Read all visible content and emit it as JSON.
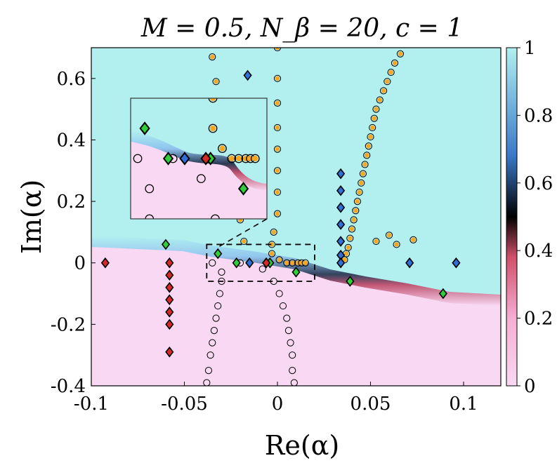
{
  "chart_data": {
    "type": "scatter",
    "title": "M = 0.5, N_β = 20, c = 1",
    "xlabel": "Re(α)",
    "ylabel": "Im(α)",
    "xlim": [
      -0.1,
      0.12
    ],
    "ylim": [
      -0.4,
      0.7
    ],
    "xticks": [
      "-0.1",
      "-0.05",
      "0",
      "0.05",
      "0.1"
    ],
    "xtick_values": [
      -0.1,
      -0.05,
      0,
      0.05,
      0.1
    ],
    "yticks": [
      "-0.4",
      "-0.2",
      "0",
      "0.2",
      "0.4",
      "0.6"
    ],
    "ytick_values": [
      -0.4,
      -0.2,
      0,
      0.2,
      0.4,
      0.6
    ],
    "colorbar": {
      "range": [
        0,
        1
      ],
      "ticks": [
        "0",
        "0.2",
        "0.4",
        "0.6",
        "0.8",
        "1"
      ],
      "tick_values": [
        0,
        0.2,
        0.4,
        0.6,
        0.8,
        1
      ],
      "colors": [
        "#f8d8f2",
        "#f5aed4",
        "#d0506a",
        "#000000",
        "#3a78c8",
        "#b2f0f0"
      ]
    },
    "series": [
      {
        "name": "green-diamonds",
        "marker": "diamond",
        "color": "#2fcf3a",
        "points": [
          [
            -0.06,
            0.06
          ],
          [
            -0.032,
            0.03
          ],
          [
            -0.022,
            0.0
          ],
          [
            -0.004,
            0.0
          ],
          [
            0.01,
            -0.03
          ],
          [
            0.039,
            -0.06
          ],
          [
            0.089,
            -0.1
          ]
        ]
      },
      {
        "name": "red-diamonds",
        "marker": "diamond",
        "color": "#d62a2a",
        "points": [
          [
            -0.0925,
            0.0
          ],
          [
            -0.058,
            0.0
          ],
          [
            -0.058,
            -0.04
          ],
          [
            -0.058,
            -0.08
          ],
          [
            -0.058,
            -0.12
          ],
          [
            -0.058,
            -0.16
          ],
          [
            -0.058,
            -0.2
          ],
          [
            -0.058,
            -0.29
          ],
          [
            -0.006,
            0.0
          ]
        ]
      },
      {
        "name": "blue-diamonds",
        "marker": "diamond",
        "color": "#2f6fd6",
        "points": [
          [
            -0.016,
            0.61
          ],
          [
            -0.015,
            0.0
          ],
          [
            0.034,
            0.29
          ],
          [
            0.034,
            0.235
          ],
          [
            0.034,
            0.18
          ],
          [
            0.034,
            0.125
          ],
          [
            0.034,
            0.07
          ],
          [
            0.034,
            0.025
          ],
          [
            0.034,
            0.0
          ],
          [
            0.071,
            0.0
          ],
          [
            0.096,
            0.0
          ]
        ]
      },
      {
        "name": "open-circles",
        "marker": "circle-open",
        "color": "#000000",
        "points": [
          [
            -0.035,
            0.0
          ],
          [
            -0.03,
            -0.03
          ],
          [
            -0.03,
            -0.06
          ],
          [
            -0.031,
            -0.1
          ],
          [
            -0.032,
            -0.14
          ],
          [
            -0.033,
            -0.18
          ],
          [
            -0.034,
            -0.22
          ],
          [
            -0.035,
            -0.26
          ],
          [
            -0.036,
            -0.3
          ],
          [
            -0.037,
            -0.35
          ],
          [
            -0.038,
            -0.39
          ],
          [
            -0.02,
            0.0
          ],
          [
            -0.008,
            -0.02
          ],
          [
            -0.002,
            -0.06
          ],
          [
            0.001,
            -0.1
          ],
          [
            0.003,
            -0.14
          ],
          [
            0.005,
            -0.18
          ],
          [
            0.006,
            -0.22
          ],
          [
            0.007,
            -0.26
          ],
          [
            0.008,
            -0.3
          ],
          [
            0.008,
            -0.35
          ],
          [
            0.009,
            -0.39
          ]
        ]
      },
      {
        "name": "orange-filled-circles",
        "marker": "circle-filled",
        "color": "#f5a623",
        "points": [
          [
            -0.035,
            0.67
          ],
          [
            -0.033,
            0.59
          ],
          [
            -0.03,
            0.5
          ],
          [
            -0.028,
            0.42
          ],
          [
            -0.026,
            0.35
          ],
          [
            -0.024,
            0.28
          ],
          [
            -0.022,
            0.21
          ],
          [
            -0.02,
            0.14
          ],
          [
            -0.018,
            0.07
          ],
          [
            0.0,
            0.7
          ],
          [
            0.0,
            0.6
          ],
          [
            0.0,
            0.52
          ],
          [
            0.0,
            0.44
          ],
          [
            0.0,
            0.37
          ],
          [
            0.0,
            0.3
          ],
          [
            0.0,
            0.23
          ],
          [
            0.0,
            0.16
          ],
          [
            -0.002,
            0.1
          ],
          [
            -0.003,
            0.06
          ],
          [
            -0.003,
            0.03
          ],
          [
            0.001,
            0.01
          ],
          [
            0.005,
            0.0
          ],
          [
            0.008,
            0.0
          ],
          [
            0.011,
            0.0
          ],
          [
            0.013,
            0.0
          ],
          [
            0.015,
            0.0
          ],
          [
            0.066,
            0.68
          ],
          [
            0.063,
            0.65
          ],
          [
            0.061,
            0.62
          ],
          [
            0.059,
            0.59
          ],
          [
            0.057,
            0.56
          ],
          [
            0.055,
            0.53
          ],
          [
            0.053,
            0.5
          ],
          [
            0.052,
            0.47
          ],
          [
            0.051,
            0.44
          ],
          [
            0.05,
            0.41
          ],
          [
            0.049,
            0.38
          ],
          [
            0.048,
            0.35
          ],
          [
            0.047,
            0.32
          ],
          [
            0.046,
            0.29
          ],
          [
            0.045,
            0.26
          ],
          [
            0.044,
            0.23
          ],
          [
            0.043,
            0.2
          ],
          [
            0.042,
            0.17
          ],
          [
            0.041,
            0.14
          ],
          [
            0.04,
            0.11
          ],
          [
            0.039,
            0.08
          ],
          [
            0.038,
            0.05
          ],
          [
            0.037,
            0.03
          ],
          [
            0.036,
            0.01
          ],
          [
            0.053,
            0.07
          ],
          [
            0.06,
            0.09
          ],
          [
            0.064,
            0.06
          ],
          [
            0.073,
            0.075
          ]
        ]
      }
    ],
    "inset": {
      "description_region_xlim": [
        -0.038,
        0.02
      ],
      "description_region_ylim": [
        -0.06,
        0.06
      ],
      "linestyle": "dashed"
    }
  }
}
